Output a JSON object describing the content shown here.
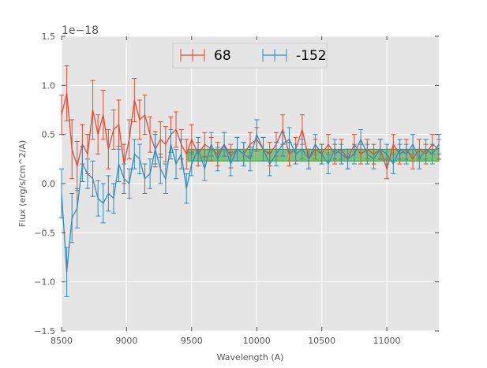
{
  "chart_data": {
    "type": "line",
    "title": "",
    "xlabel": "Wavelength (A)",
    "ylabel": "Flux (erg/s/cm^2/A)",
    "y_offset_text": "1e−18",
    "xlim": [
      8500,
      11400
    ],
    "ylim": [
      -1.5,
      1.5
    ],
    "xticks": [
      8500,
      9000,
      9500,
      10000,
      10500,
      11000
    ],
    "xtick_labels": [
      "8500",
      "9000",
      "9500",
      "10000",
      "10500",
      "11000"
    ],
    "yticks": [
      -1.5,
      -1.0,
      -0.5,
      0.0,
      0.5,
      1.0,
      1.5
    ],
    "ytick_labels": [
      "−1.5",
      "−1.0",
      "−0.5",
      "0.0",
      "0.5",
      "1.0",
      "1.5"
    ],
    "legend_position": "top-center",
    "band": {
      "x_start": 9470,
      "x_end": 11400,
      "y_low": 0.23,
      "y_high": 0.35,
      "color": "#2ca02c"
    },
    "series": [
      {
        "name": "68",
        "color": "#e24a33",
        "x": [
          8500,
          8540,
          8580,
          8620,
          8660,
          8700,
          8740,
          8780,
          8820,
          8860,
          8900,
          8940,
          8980,
          9020,
          9060,
          9100,
          9140,
          9180,
          9220,
          9260,
          9300,
          9340,
          9380,
          9420,
          9460,
          9500,
          9550,
          9600,
          9650,
          9700,
          9750,
          9800,
          9850,
          9900,
          9950,
          10000,
          10050,
          10100,
          10150,
          10200,
          10250,
          10300,
          10350,
          10400,
          10450,
          10500,
          10550,
          10600,
          10650,
          10700,
          10750,
          10800,
          10850,
          10900,
          10950,
          11000,
          11050,
          11100,
          11150,
          11200,
          11250,
          11300,
          11350,
          11400
        ],
        "y": [
          0.7,
          0.92,
          0.35,
          0.18,
          0.4,
          0.3,
          0.75,
          0.5,
          0.7,
          0.35,
          0.55,
          0.6,
          0.2,
          0.45,
          0.85,
          0.65,
          0.7,
          0.5,
          0.35,
          0.45,
          0.4,
          0.5,
          0.55,
          0.4,
          0.3,
          0.45,
          0.3,
          0.4,
          0.35,
          0.3,
          0.4,
          0.28,
          0.35,
          0.3,
          0.4,
          0.45,
          0.35,
          0.3,
          0.4,
          0.55,
          0.3,
          0.35,
          0.55,
          0.25,
          0.35,
          0.3,
          0.4,
          0.3,
          0.35,
          0.25,
          0.4,
          0.3,
          0.35,
          0.3,
          0.35,
          0.15,
          0.4,
          0.3,
          0.35,
          0.25,
          0.35,
          0.3,
          0.4,
          0.35
        ],
        "err": [
          0.2,
          0.28,
          0.3,
          0.25,
          0.2,
          0.2,
          0.3,
          0.2,
          0.25,
          0.2,
          0.2,
          0.25,
          0.2,
          0.2,
          0.22,
          0.2,
          0.2,
          0.18,
          0.18,
          0.18,
          0.18,
          0.18,
          0.18,
          0.15,
          0.15,
          0.15,
          0.12,
          0.12,
          0.12,
          0.12,
          0.12,
          0.12,
          0.12,
          0.12,
          0.12,
          0.12,
          0.12,
          0.12,
          0.12,
          0.15,
          0.12,
          0.12,
          0.15,
          0.1,
          0.1,
          0.1,
          0.1,
          0.1,
          0.1,
          0.1,
          0.1,
          0.1,
          0.1,
          0.1,
          0.1,
          0.1,
          0.1,
          0.1,
          0.1,
          0.1,
          0.1,
          0.1,
          0.1,
          0.1
        ]
      },
      {
        "name": "-152",
        "color": "#348abd",
        "x": [
          8500,
          8540,
          8580,
          8620,
          8660,
          8700,
          8740,
          8780,
          8820,
          8860,
          8900,
          8940,
          8980,
          9020,
          9060,
          9100,
          9140,
          9180,
          9220,
          9260,
          9300,
          9340,
          9380,
          9420,
          9460,
          9500,
          9550,
          9600,
          9650,
          9700,
          9750,
          9800,
          9850,
          9900,
          9950,
          10000,
          10050,
          10100,
          10150,
          10200,
          10250,
          10300,
          10350,
          10400,
          10450,
          10500,
          10550,
          10600,
          10650,
          10700,
          10750,
          10800,
          10850,
          10900,
          10950,
          11000,
          11050,
          11100,
          11150,
          11200,
          11250,
          11300,
          11350,
          11400
        ],
        "y": [
          -0.1,
          -0.9,
          -0.35,
          -0.25,
          0.2,
          0.1,
          0.05,
          -0.15,
          -0.2,
          -0.1,
          -0.15,
          0.2,
          0.05,
          0.0,
          0.3,
          0.25,
          0.05,
          0.1,
          0.35,
          0.15,
          0.05,
          0.4,
          0.2,
          0.3,
          -0.05,
          0.2,
          0.35,
          0.15,
          0.4,
          0.25,
          0.4,
          0.2,
          0.35,
          0.3,
          0.25,
          0.5,
          0.35,
          0.2,
          0.3,
          0.4,
          0.45,
          0.3,
          0.35,
          0.25,
          0.4,
          0.3,
          0.2,
          0.35,
          0.3,
          0.25,
          0.3,
          0.45,
          0.3,
          0.25,
          0.35,
          0.3,
          0.2,
          0.35,
          0.3,
          0.4,
          0.25,
          0.35,
          0.3,
          0.4
        ],
        "err": [
          0.25,
          0.25,
          0.25,
          0.2,
          0.18,
          0.15,
          0.18,
          0.18,
          0.2,
          0.18,
          0.15,
          0.18,
          0.15,
          0.15,
          0.15,
          0.15,
          0.15,
          0.15,
          0.15,
          0.15,
          0.15,
          0.15,
          0.15,
          0.15,
          0.15,
          0.12,
          0.12,
          0.12,
          0.12,
          0.12,
          0.12,
          0.12,
          0.12,
          0.12,
          0.12,
          0.15,
          0.12,
          0.12,
          0.12,
          0.12,
          0.12,
          0.1,
          0.1,
          0.1,
          0.1,
          0.1,
          0.1,
          0.1,
          0.1,
          0.1,
          0.1,
          0.1,
          0.1,
          0.1,
          0.1,
          0.1,
          0.1,
          0.1,
          0.1,
          0.1,
          0.1,
          0.1,
          0.1,
          0.1
        ]
      }
    ]
  }
}
